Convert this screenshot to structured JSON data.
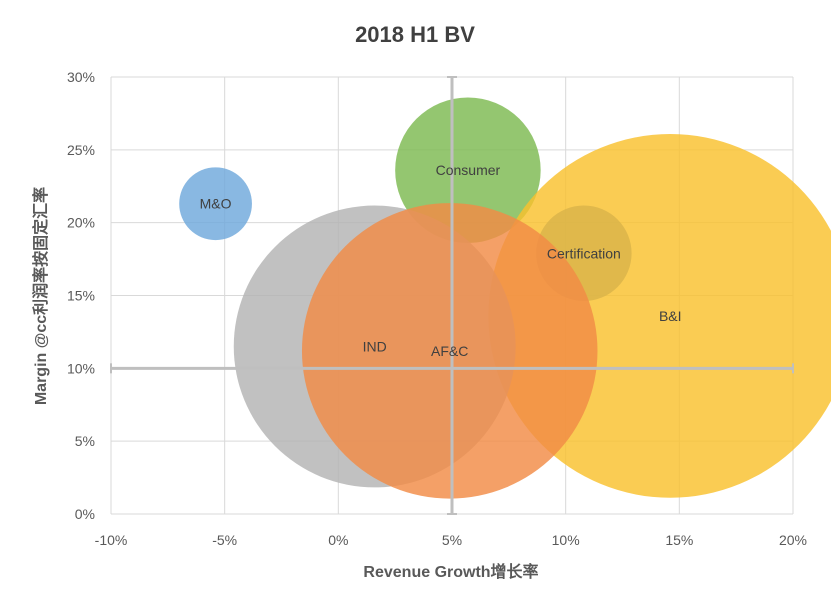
{
  "chart_data": {
    "type": "scatter",
    "title": "2018 H1 BV",
    "xlabel": "Revenue Growth增长率",
    "ylabel": "Margin @cc利润率按固定汇率",
    "xlim": [
      -10,
      20
    ],
    "ylim": [
      0,
      30
    ],
    "x_ticks": [
      "-10%",
      "-5%",
      "0%",
      "5%",
      "10%",
      "15%",
      "20%"
    ],
    "y_ticks": [
      "0%",
      "5%",
      "10%",
      "15%",
      "20%",
      "25%",
      "30%"
    ],
    "grid": true,
    "crosshair": {
      "x": 5,
      "y": 10
    },
    "series": [
      {
        "name": "M&O",
        "x": -5.4,
        "y": 21.3,
        "size": 1.6,
        "color": "#6FA8DC"
      },
      {
        "name": "Consumer",
        "x": 5.7,
        "y": 23.6,
        "size": 3.2,
        "color": "#7CB950"
      },
      {
        "name": "Certification",
        "x": 10.8,
        "y": 17.9,
        "size": 2.1,
        "color": "#4D78C9"
      },
      {
        "name": "B&I",
        "x": 14.6,
        "y": 13.6,
        "size": 8.0,
        "color": "#F9C12D"
      },
      {
        "name": "IND",
        "x": 1.6,
        "y": 11.5,
        "size": 6.2,
        "color": "#B3B3B3"
      },
      {
        "name": "AF&C",
        "x": 4.9,
        "y": 11.2,
        "size": 6.5,
        "color": "#F28B45"
      }
    ]
  }
}
